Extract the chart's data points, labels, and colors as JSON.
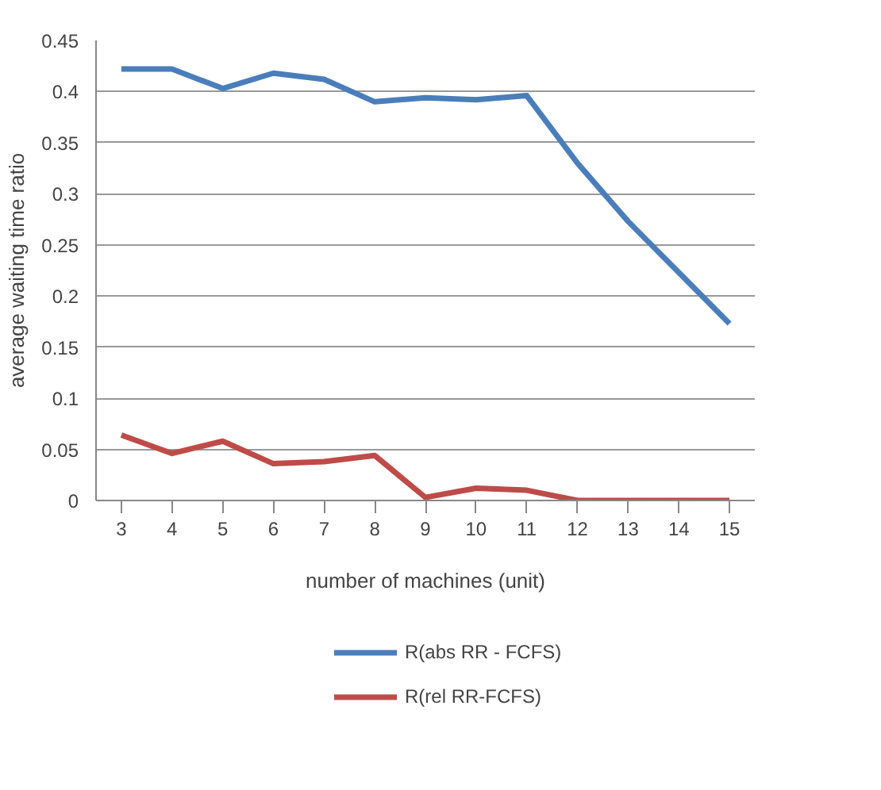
{
  "chart_data": {
    "type": "line",
    "xlabel": "number of machines (unit)",
    "ylabel": "average waiting time ratio",
    "categories": [
      "3",
      "4",
      "5",
      "6",
      "7",
      "8",
      "9",
      "10",
      "11",
      "12",
      "13",
      "14",
      "15"
    ],
    "series": [
      {
        "name": "R(abs RR - FCFS)",
        "color": "#4a7ebb",
        "values": [
          0.422,
          0.422,
          0.403,
          0.418,
          0.412,
          0.39,
          0.394,
          0.392,
          0.396,
          0.33,
          0.273,
          0.223,
          0.173
        ]
      },
      {
        "name": "R(rel RR-FCFS)",
        "color": "#be4b48",
        "values": [
          0.064,
          0.046,
          0.058,
          0.036,
          0.038,
          0.044,
          0.003,
          0.012,
          0.01,
          0,
          0,
          0,
          0
        ]
      }
    ],
    "ylim": [
      0,
      0.45
    ],
    "yticks": [
      0,
      0.05,
      0.1,
      0.15,
      0.2,
      0.25,
      0.3,
      0.35,
      0.4,
      0.45
    ],
    "grid": "y",
    "legend": "bottom",
    "marker": "none",
    "line_style": "solid"
  }
}
